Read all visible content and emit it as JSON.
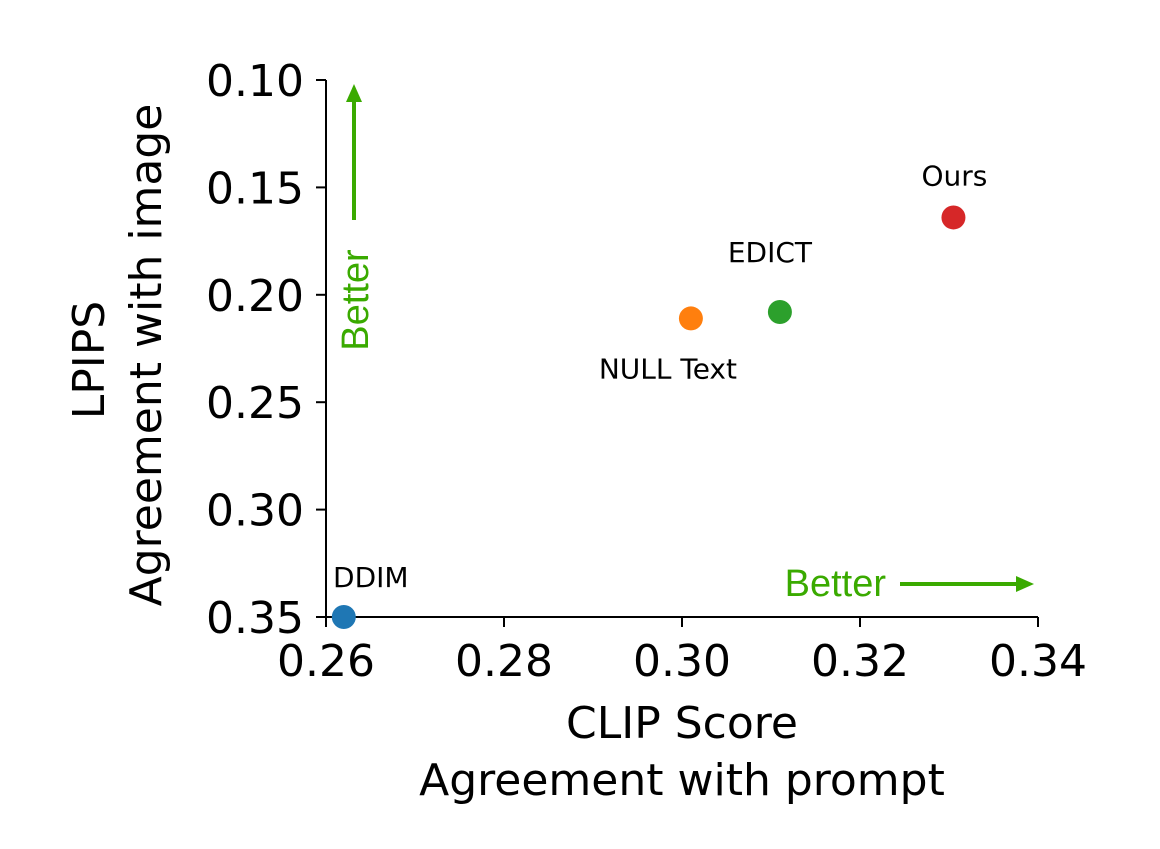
{
  "chart_data": {
    "type": "scatter",
    "title": "",
    "xlabel_lines": [
      "CLIP Score",
      "Agreement with prompt"
    ],
    "ylabel_lines": [
      "LPIPS",
      "Agreement with image"
    ],
    "xlim": [
      0.26,
      0.34
    ],
    "ylim": [
      0.35,
      0.1
    ],
    "y_inverted": true,
    "x_ticks": [
      "0.26",
      "0.28",
      "0.30",
      "0.32",
      "0.34"
    ],
    "y_ticks": [
      "0.10",
      "0.15",
      "0.20",
      "0.25",
      "0.30",
      "0.35"
    ],
    "grid": false,
    "points": [
      {
        "label": "DDIM",
        "x": 0.262,
        "y": 0.35,
        "color": "#1f77b4"
      },
      {
        "label": "NULL Text",
        "x": 0.301,
        "y": 0.211,
        "color": "#ff7f0e"
      },
      {
        "label": "EDICT",
        "x": 0.311,
        "y": 0.208,
        "color": "#2ca02c"
      },
      {
        "label": "Ours",
        "x": 0.3305,
        "y": 0.164,
        "color": "#d62728"
      }
    ],
    "annotations": {
      "better_x": "Better",
      "better_y": "Better",
      "color": "#3aaa00"
    }
  }
}
